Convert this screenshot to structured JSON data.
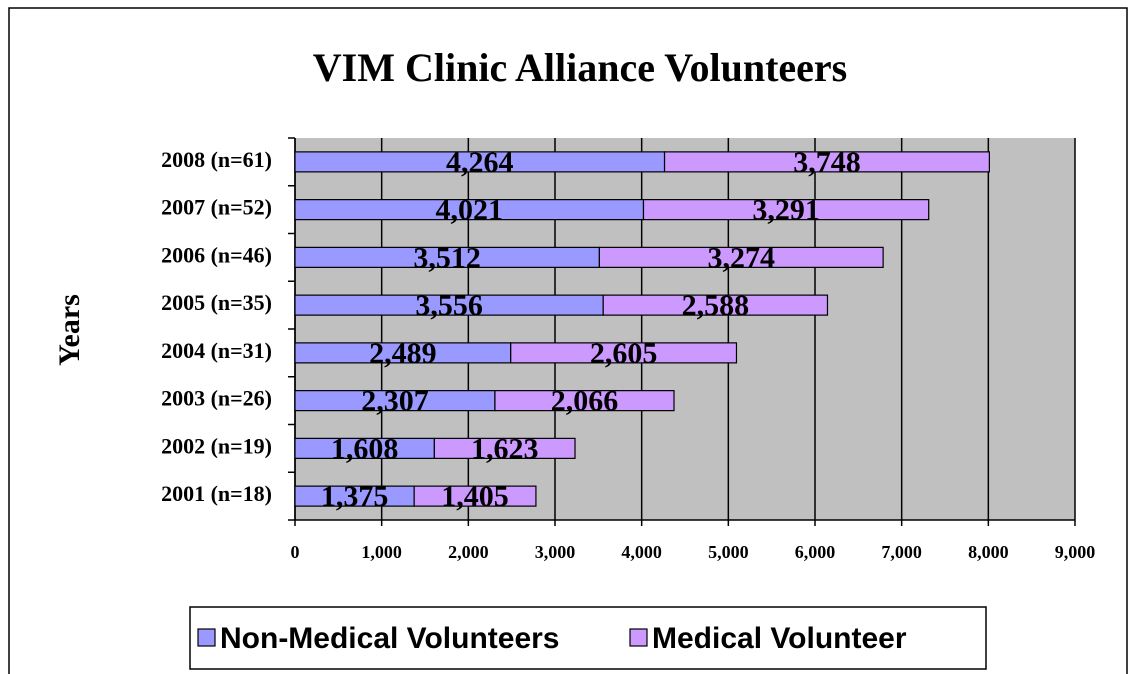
{
  "chart_data": {
    "type": "stacked-barh",
    "title": "VIM Clinic Alliance Volunteers",
    "ylabel": "Years",
    "categories": [
      "2001 (n=18)",
      "2002 (n=19)",
      "2003 (n=26)",
      "2004 (n=31)",
      "2005 (n=35)",
      "2006 (n=46)",
      "2007 (n=52)",
      "2008 (n=61)"
    ],
    "series": [
      {
        "name": "Non-Medical Volunteers",
        "color": "#9999ff",
        "values": [
          1375,
          1608,
          2307,
          2489,
          3556,
          3512,
          4021,
          4264
        ],
        "value_labels": [
          "1,375",
          "1,608",
          "2,307",
          "2,489",
          "3,556",
          "3,512",
          "4,021",
          "4,264"
        ]
      },
      {
        "name": "Medical Volunteer",
        "color": "#cc99ff",
        "values": [
          1405,
          1623,
          2066,
          2605,
          2588,
          3274,
          3291,
          3748
        ],
        "value_labels": [
          "1,405",
          "1,623",
          "2,066",
          "2,605",
          "2,588",
          "3,274",
          "3,291",
          "3,748"
        ]
      }
    ],
    "xlim": [
      0,
      9000
    ],
    "xticks": [
      0,
      {
        "value": 1000,
        "label": "1,000"
      },
      {
        "value": 2000,
        "label": "2,000"
      },
      {
        "value": 3000,
        "label": "3,000"
      },
      {
        "value": 4000,
        "label": "4,000"
      },
      {
        "value": 5000,
        "label": "5,000"
      },
      {
        "value": 6000,
        "label": "6,000"
      },
      {
        "value": 7000,
        "label": "7,000"
      },
      {
        "value": 8000,
        "label": "8,000"
      },
      {
        "value": 9000,
        "label": "9,000"
      }
    ],
    "grid": true,
    "legend": "bottom",
    "plot_background": "#c0c0c0"
  }
}
